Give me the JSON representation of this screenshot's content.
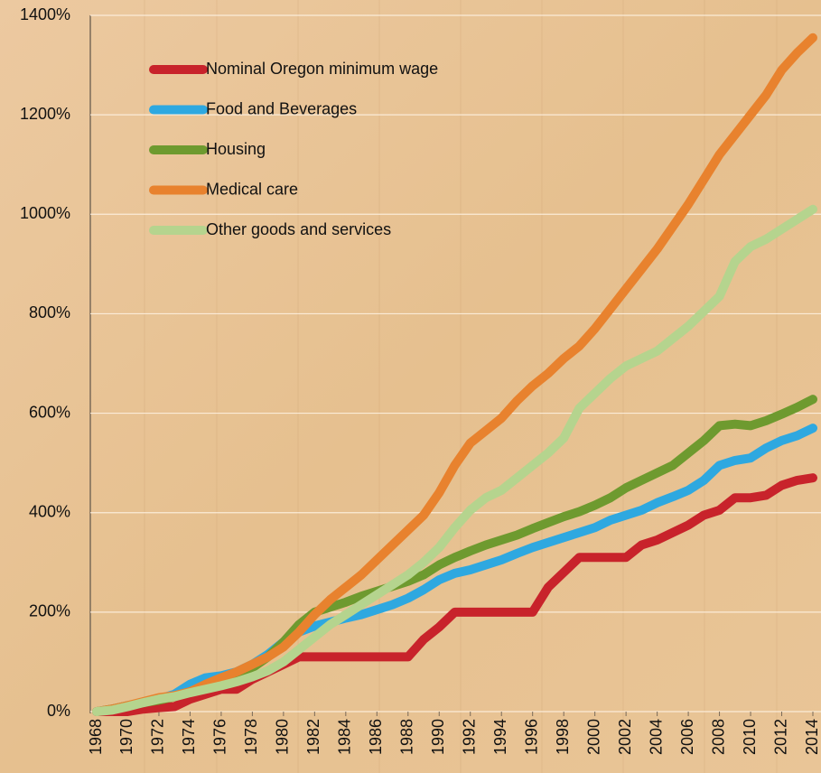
{
  "chart_data": {
    "type": "line",
    "x": [
      1968,
      1969,
      1970,
      1971,
      1972,
      1973,
      1974,
      1975,
      1976,
      1977,
      1978,
      1979,
      1980,
      1981,
      1982,
      1983,
      1984,
      1985,
      1986,
      1987,
      1988,
      1989,
      1990,
      1991,
      1992,
      1993,
      1994,
      1995,
      1996,
      1997,
      1998,
      1999,
      2000,
      2001,
      2002,
      2003,
      2004,
      2005,
      2006,
      2007,
      2008,
      2009,
      2010,
      2011,
      2012,
      2013,
      2014
    ],
    "xlim": [
      1968,
      2014
    ],
    "xticks": [
      1968,
      1970,
      1972,
      1974,
      1976,
      1978,
      1980,
      1982,
      1984,
      1986,
      1988,
      1990,
      1992,
      1994,
      1996,
      1998,
      2000,
      2002,
      2004,
      2006,
      2008,
      2010,
      2012,
      2014
    ],
    "ylim": [
      0,
      1400
    ],
    "yticks": [
      {
        "value": 0,
        "label": "0%"
      },
      {
        "value": 200,
        "label": "200%"
      },
      {
        "value": 400,
        "label": "400%"
      },
      {
        "value": 600,
        "label": "600%"
      },
      {
        "value": 800,
        "label": "800%"
      },
      {
        "value": 1000,
        "label": "1000%"
      },
      {
        "value": 1200,
        "label": "1200%"
      },
      {
        "value": 1400,
        "label": "1400%"
      }
    ],
    "grid": true,
    "legend": "upper left",
    "series": [
      {
        "name": "Nominal Oregon minimum wage",
        "color": "#c8232b",
        "values": [
          0,
          0,
          0,
          5,
          8,
          10,
          25,
          35,
          45,
          45,
          65,
          80,
          95,
          110,
          110,
          110,
          110,
          110,
          110,
          110,
          110,
          145,
          170,
          200,
          200,
          200,
          200,
          200,
          200,
          250,
          280,
          310,
          310,
          310,
          310,
          335,
          345,
          360,
          375,
          395,
          405,
          430,
          430,
          435,
          455,
          465,
          470
        ]
      },
      {
        "name": "Food and Beverages",
        "color": "#2ea8e0",
        "values": [
          0,
          5,
          12,
          18,
          25,
          35,
          55,
          68,
          72,
          80,
          95,
          115,
          140,
          160,
          172,
          180,
          188,
          195,
          205,
          215,
          228,
          245,
          265,
          278,
          285,
          295,
          305,
          318,
          330,
          340,
          350,
          360,
          370,
          385,
          395,
          405,
          420,
          432,
          445,
          465,
          495,
          505,
          510,
          530,
          545,
          555,
          570
        ]
      },
      {
        "name": "Housing",
        "color": "#6e9a2f",
        "values": [
          0,
          5,
          12,
          18,
          23,
          30,
          40,
          50,
          60,
          72,
          88,
          110,
          140,
          175,
          200,
          210,
          220,
          232,
          242,
          252,
          262,
          275,
          295,
          310,
          323,
          335,
          345,
          355,
          368,
          380,
          392,
          402,
          415,
          430,
          450,
          465,
          480,
          495,
          520,
          545,
          575,
          578,
          575,
          585,
          598,
          612,
          628
        ]
      },
      {
        "name": "Medical care",
        "color": "#e8822e",
        "values": [
          0,
          5,
          12,
          20,
          28,
          32,
          40,
          55,
          68,
          80,
          95,
          110,
          130,
          160,
          195,
          225,
          250,
          275,
          305,
          335,
          365,
          395,
          440,
          495,
          540,
          565,
          590,
          625,
          655,
          680,
          710,
          735,
          770,
          810,
          850,
          890,
          930,
          975,
          1020,
          1070,
          1120,
          1160,
          1200,
          1240,
          1290,
          1325,
          1355
        ]
      },
      {
        "name": "Other goods and services",
        "color": "#b5d48e",
        "values": [
          0,
          3,
          10,
          18,
          25,
          30,
          38,
          45,
          52,
          60,
          70,
          82,
          100,
          125,
          150,
          175,
          195,
          215,
          235,
          255,
          275,
          300,
          330,
          370,
          405,
          430,
          445,
          470,
          495,
          520,
          550,
          610,
          640,
          670,
          695,
          710,
          725,
          750,
          775,
          805,
          835,
          905,
          935,
          950,
          970,
          990,
          1010
        ]
      }
    ]
  }
}
